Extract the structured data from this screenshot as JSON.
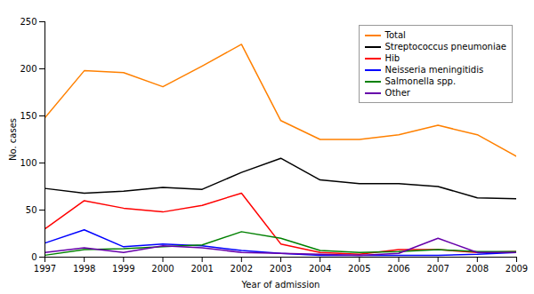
{
  "chart_data": {
    "type": "line",
    "x": [
      1997,
      1998,
      1999,
      2000,
      2001,
      2002,
      2003,
      2004,
      2005,
      2006,
      2007,
      2008,
      2009
    ],
    "series": [
      {
        "name": "Total",
        "color": "#FF8000",
        "values": [
          148,
          198,
          196,
          181,
          203,
          226,
          145,
          125,
          125,
          130,
          140,
          130,
          107
        ]
      },
      {
        "name": "Streptococcus pneumoniae",
        "color": "#000000",
        "values": [
          73,
          68,
          70,
          74,
          72,
          90,
          105,
          82,
          78,
          78,
          75,
          63,
          62
        ]
      },
      {
        "name": "Hib",
        "color": "#FF0000",
        "values": [
          30,
          60,
          52,
          48,
          55,
          68,
          14,
          5,
          3,
          8,
          8,
          5,
          6
        ]
      },
      {
        "name": "Neisseria meningitidis",
        "color": "#0000FF",
        "values": [
          15,
          29,
          11,
          14,
          12,
          7,
          4,
          2,
          2,
          2,
          2,
          3,
          5
        ]
      },
      {
        "name": "Salmonella spp.",
        "color": "#008000",
        "values": [
          2,
          8,
          9,
          11,
          13,
          27,
          20,
          7,
          5,
          6,
          8,
          6,
          6
        ]
      },
      {
        "name": "Other",
        "color": "#6600AA",
        "values": [
          5,
          10,
          5,
          12,
          10,
          5,
          4,
          3,
          2,
          4,
          20,
          5,
          5
        ]
      }
    ],
    "xlabel": "Year of admission",
    "ylabel": "No. cases",
    "xlim": [
      1997,
      2009
    ],
    "xticks": [
      1997,
      1998,
      1999,
      2000,
      2001,
      2002,
      2003,
      2004,
      2005,
      2006,
      2007,
      2008,
      2009
    ],
    "ylim": [
      0,
      250
    ],
    "yticks": [
      0,
      50,
      100,
      150,
      200,
      250
    ],
    "grid": false,
    "legend": "upper right"
  }
}
